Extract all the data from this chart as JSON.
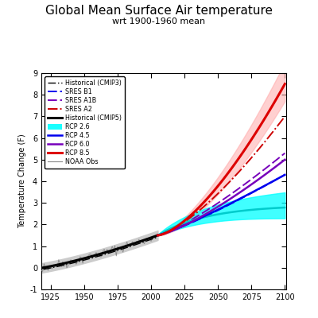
{
  "title": "Global Mean Surface Air temperature",
  "subtitle": "wrt 1900-1960 mean",
  "ylabel": "Temperature Change (F)",
  "xlim": [
    1918,
    2101
  ],
  "ylim": [
    -1.0,
    9.0
  ],
  "yticks": [
    -1,
    0,
    1,
    2,
    3,
    4,
    5,
    6,
    7,
    8,
    9
  ],
  "ytick_labels": [
    "-1",
    "0",
    "1",
    "2",
    "3",
    "4",
    "5",
    "6",
    "7",
    "8",
    "9"
  ],
  "xticks": [
    1925,
    1950,
    1975,
    2000,
    2025,
    2050,
    2075,
    2100
  ],
  "colors": {
    "cmip3_hist": "#000000",
    "sres_b1": "#0000EE",
    "sres_a1b": "#7700BB",
    "sres_a2": "#CC0000",
    "cmip5_hist": "#000000",
    "rcp26": "#00CCCC",
    "rcp45": "#0000EE",
    "rcp60": "#7700BB",
    "rcp85": "#DD0000",
    "noaa": "#888888",
    "shade_gray": "#CCCCCC",
    "shade_rcp26": "#00FFFF",
    "shade_rcp85": "#FFAAAA"
  },
  "legend_entries": [
    "Historical (CMIP3)",
    "SRES B1",
    "SRES A1B",
    "SRES A2",
    "Historical (CMIP5)",
    "RCP 2.6",
    "RCP 4.5",
    "RCP 6.0",
    "RCP 8.5",
    "NOAA Obs"
  ]
}
